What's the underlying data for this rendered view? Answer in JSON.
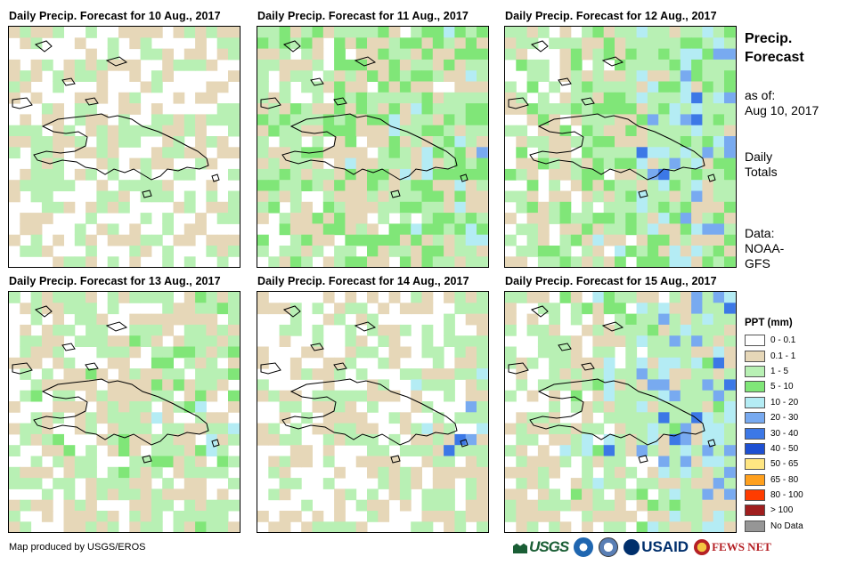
{
  "panels": [
    {
      "title": "Daily Precip. Forecast for 10 Aug., 2017"
    },
    {
      "title": "Daily Precip. Forecast for 11 Aug., 2017"
    },
    {
      "title": "Daily Precip. Forecast for 12 Aug., 2017"
    },
    {
      "title": "Daily Precip. Forecast for 13 Aug., 2017"
    },
    {
      "title": "Daily Precip. Forecast for 14 Aug., 2017"
    },
    {
      "title": "Daily Precip. Forecast for 15 Aug., 2017"
    }
  ],
  "sidebar": {
    "heading_line1": "Precip.",
    "heading_line2": "Forecast",
    "asof_label": "as of:",
    "asof_date": "Aug 10, 2017",
    "totals_line1": "Daily",
    "totals_line2": "Totals",
    "data_line1": "Data:",
    "data_line2": "NOAA-",
    "data_line3": "GFS"
  },
  "legend": {
    "title": "PPT (mm)",
    "items": [
      {
        "label": "0 - 0.1",
        "color": "#ffffff"
      },
      {
        "label": "0.1 - 1",
        "color": "#e6d7b8"
      },
      {
        "label": "1 - 5",
        "color": "#b8f0b4"
      },
      {
        "label": "5 - 10",
        "color": "#80e678"
      },
      {
        "label": "10 - 20",
        "color": "#b4ecf4"
      },
      {
        "label": "20 - 30",
        "color": "#78aaf0"
      },
      {
        "label": "30 - 40",
        "color": "#3c78e6"
      },
      {
        "label": "40 - 50",
        "color": "#1e50d2"
      },
      {
        "label": "50 - 65",
        "color": "#ffe682"
      },
      {
        "label": "65 - 80",
        "color": "#ffa01e"
      },
      {
        "label": "80 - 100",
        "color": "#ff3c00"
      },
      {
        "label": "> 100",
        "color": "#a01e1e"
      },
      {
        "label": "No Data",
        "color": "#969696"
      }
    ]
  },
  "footer": {
    "credit": "Map produced by USGS/EROS",
    "logos": [
      {
        "name": "USGS",
        "text": "USGS"
      },
      {
        "name": "NOAA",
        "text": ""
      },
      {
        "name": "US Department of State",
        "text": ""
      },
      {
        "name": "USAID",
        "text": "USAID"
      },
      {
        "name": "FEWS NET",
        "text": "FEWS NET"
      }
    ]
  }
}
